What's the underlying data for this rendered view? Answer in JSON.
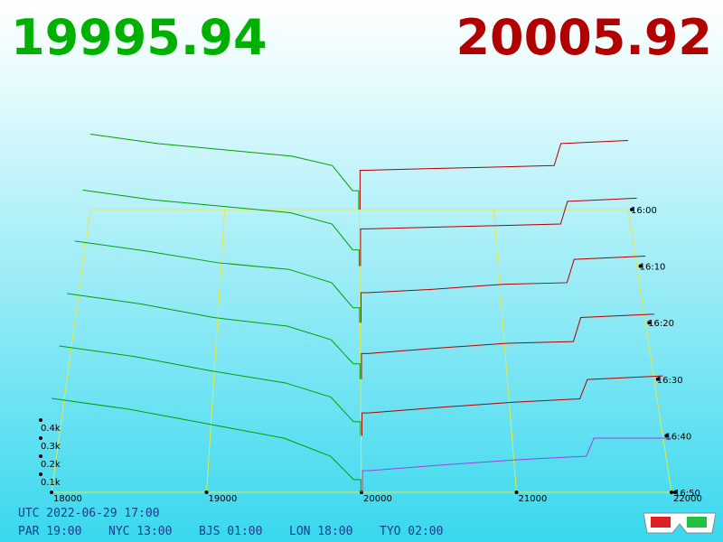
{
  "chart_data": {
    "type": "depth3d",
    "best_bid": 19995.94,
    "best_ask": 20005.92,
    "bid_color": "#00a000",
    "ask_color": "#b00000",
    "latest_ask_color": "#a040e0",
    "xlim": [
      18000,
      22000
    ],
    "xticks": [
      18000,
      19000,
      20000,
      21000,
      22000
    ],
    "ylim": [
      0,
      500
    ],
    "yticks": [
      {
        "value": 100,
        "label": "0.1k"
      },
      {
        "value": 200,
        "label": "0.2k"
      },
      {
        "value": 300,
        "label": "0.3k"
      },
      {
        "value": 400,
        "label": "0.4k"
      }
    ],
    "bid_x": [
      18000,
      18500,
      19000,
      19500,
      19800,
      19950
    ],
    "ask_x": [
      20050,
      20500,
      21000,
      21450,
      21500,
      22000
    ],
    "slices": [
      {
        "time": "16:00",
        "bids": [
          480,
          420,
          380,
          340,
          280,
          120
        ],
        "asks": [
          250,
          260,
          270,
          280,
          420,
          440
        ]
      },
      {
        "time": "16:10",
        "bids": [
          470,
          410,
          370,
          330,
          260,
          100
        ],
        "asks": [
          230,
          240,
          250,
          260,
          400,
          420
        ]
      },
      {
        "time": "16:20",
        "bids": [
          490,
          430,
          360,
          320,
          240,
          90
        ],
        "asks": [
          180,
          200,
          230,
          240,
          380,
          400
        ]
      },
      {
        "time": "16:30",
        "bids": [
          500,
          440,
          360,
          310,
          230,
          90
        ],
        "asks": [
          150,
          180,
          210,
          220,
          360,
          380
        ]
      },
      {
        "time": "16:40",
        "bids": [
          510,
          450,
          370,
          300,
          220,
          80
        ],
        "asks": [
          130,
          160,
          190,
          210,
          320,
          340
        ]
      },
      {
        "time": "16:50",
        "bids": [
          520,
          460,
          380,
          300,
          200,
          70
        ],
        "asks": [
          120,
          150,
          180,
          200,
          300,
          300
        ]
      }
    ]
  },
  "footer": {
    "utc": "UTC 2022-06-29 17:00",
    "zones": [
      "PAR 19:00",
      "NYC 13:00",
      "BJS 01:00",
      "LON 18:00",
      "TYO 02:00"
    ]
  }
}
